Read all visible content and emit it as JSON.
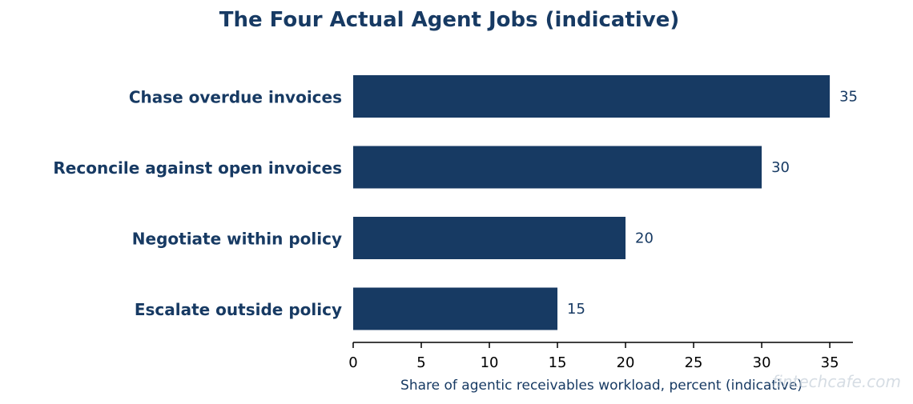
{
  "chart_data": {
    "type": "bar",
    "orientation": "horizontal",
    "title": "The Four Actual Agent Jobs (indicative)",
    "xlabel": "Share of agentic receivables workload, percent (indicative)",
    "ylabel": "",
    "categories": [
      "Chase overdue invoices",
      "Reconcile against open invoices",
      "Negotiate within policy",
      "Escalate outside policy"
    ],
    "values": [
      35,
      30,
      20,
      15
    ],
    "xlim": [
      0,
      36.7
    ],
    "xticks": [
      0,
      5,
      10,
      15,
      20,
      25,
      30,
      35
    ],
    "grid": false,
    "bar_color": "#173a63"
  },
  "watermark": "fintechcafe.com"
}
